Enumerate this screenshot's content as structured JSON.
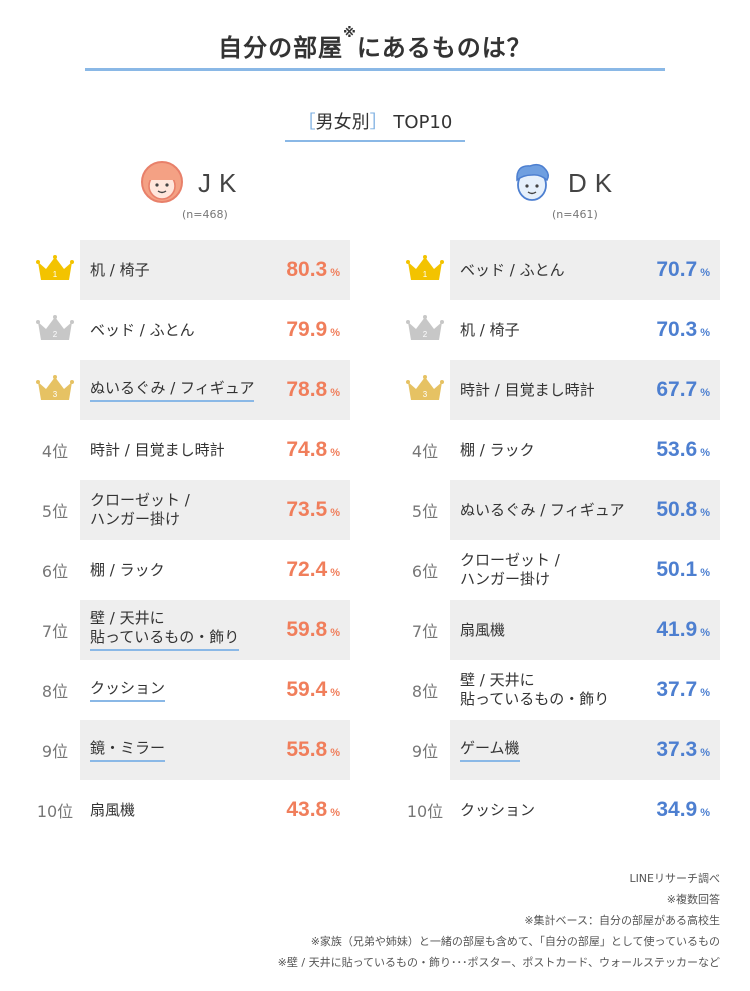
{
  "title": {
    "main": "自分の部屋",
    "mark": "※",
    "rest": "にあるものは？"
  },
  "subtitle": {
    "open": "［",
    "label": "男女別",
    "close": "］",
    "top": "TOP10"
  },
  "colors": {
    "jk": "#f07e5b",
    "dk": "#4d7fd0",
    "accent": "#8ab8e6",
    "gold": "#f3c300",
    "silver": "#c7c7c7",
    "bronze": "#e6c263"
  },
  "chart_data": [
    {
      "type": "table",
      "group": "JK",
      "n": "(n=468)",
      "unit": "%",
      "ranks": [
        "1",
        "2",
        "3",
        "4位",
        "5位",
        "6位",
        "7位",
        "8位",
        "9位",
        "10位"
      ],
      "categories": [
        "机 / 椅子",
        "ベッド / ふとん",
        "ぬいるぐみ / フィギュア",
        "時計 / 目覚まし時計",
        "クローゼット / ハンガー掛け",
        "棚 / ラック",
        "壁 / 天井に 貼っているもの・飾り",
        "クッション",
        "鏡・ミラー",
        "扇風機"
      ],
      "values": [
        80.3,
        79.9,
        78.8,
        74.8,
        73.5,
        72.4,
        59.8,
        59.4,
        55.8,
        43.8
      ]
    },
    {
      "type": "table",
      "group": "DK",
      "n": "(n=461)",
      "unit": "%",
      "ranks": [
        "1",
        "2",
        "3",
        "4位",
        "5位",
        "6位",
        "7位",
        "8位",
        "9位",
        "10位"
      ],
      "categories": [
        "ベッド / ふとん",
        "机 / 椅子",
        "時計 / 目覚まし時計",
        "棚 / ラック",
        "ぬいるぐみ / フィギュア",
        "クローゼット / ハンガー掛け",
        "扇風機",
        "壁 / 天井に 貼っているもの・飾り",
        "ゲーム機",
        "クッション"
      ],
      "values": [
        70.7,
        70.3,
        67.7,
        53.6,
        50.8,
        50.1,
        41.9,
        37.7,
        37.3,
        34.9
      ]
    }
  ],
  "labels": {
    "jk": [
      "机 / 椅子",
      "ベッド / ふとん",
      "ぬいるぐみ / フィギュア",
      "時計 / 目覚まし時計",
      [
        "クローゼット /",
        "ハンガー掛け"
      ],
      "棚 / ラック",
      [
        "壁 / 天井に",
        "貼っているもの・飾り"
      ],
      "クッション",
      "鏡・ミラー",
      "扇風機"
    ],
    "dk": [
      "ベッド / ふとん",
      "机 / 椅子",
      "時計 / 目覚まし時計",
      "棚 / ラック",
      "ぬいるぐみ / フィギュア",
      [
        "クローゼット /",
        "ハンガー掛け"
      ],
      "扇風機",
      [
        "壁 / 天井に",
        "貼っているもの・飾り"
      ],
      "ゲーム機",
      "クッション"
    ]
  },
  "underlined": {
    "jk": [
      false,
      false,
      true,
      false,
      false,
      false,
      true,
      true,
      true,
      false
    ],
    "dk": [
      false,
      false,
      false,
      false,
      false,
      false,
      false,
      false,
      true,
      false
    ]
  },
  "notes": [
    "LINEリサーチ調べ",
    "※複数回答",
    "※集計ベース：自分の部屋がある高校生",
    "※家族（兄弟や姉妹）と一緒の部屋も含めて、「自分の部屋」として使っているもの",
    "※壁 / 天井に貼っているもの・飾り･･･ポスター、ポストカード、ウォールステッカーなど"
  ]
}
